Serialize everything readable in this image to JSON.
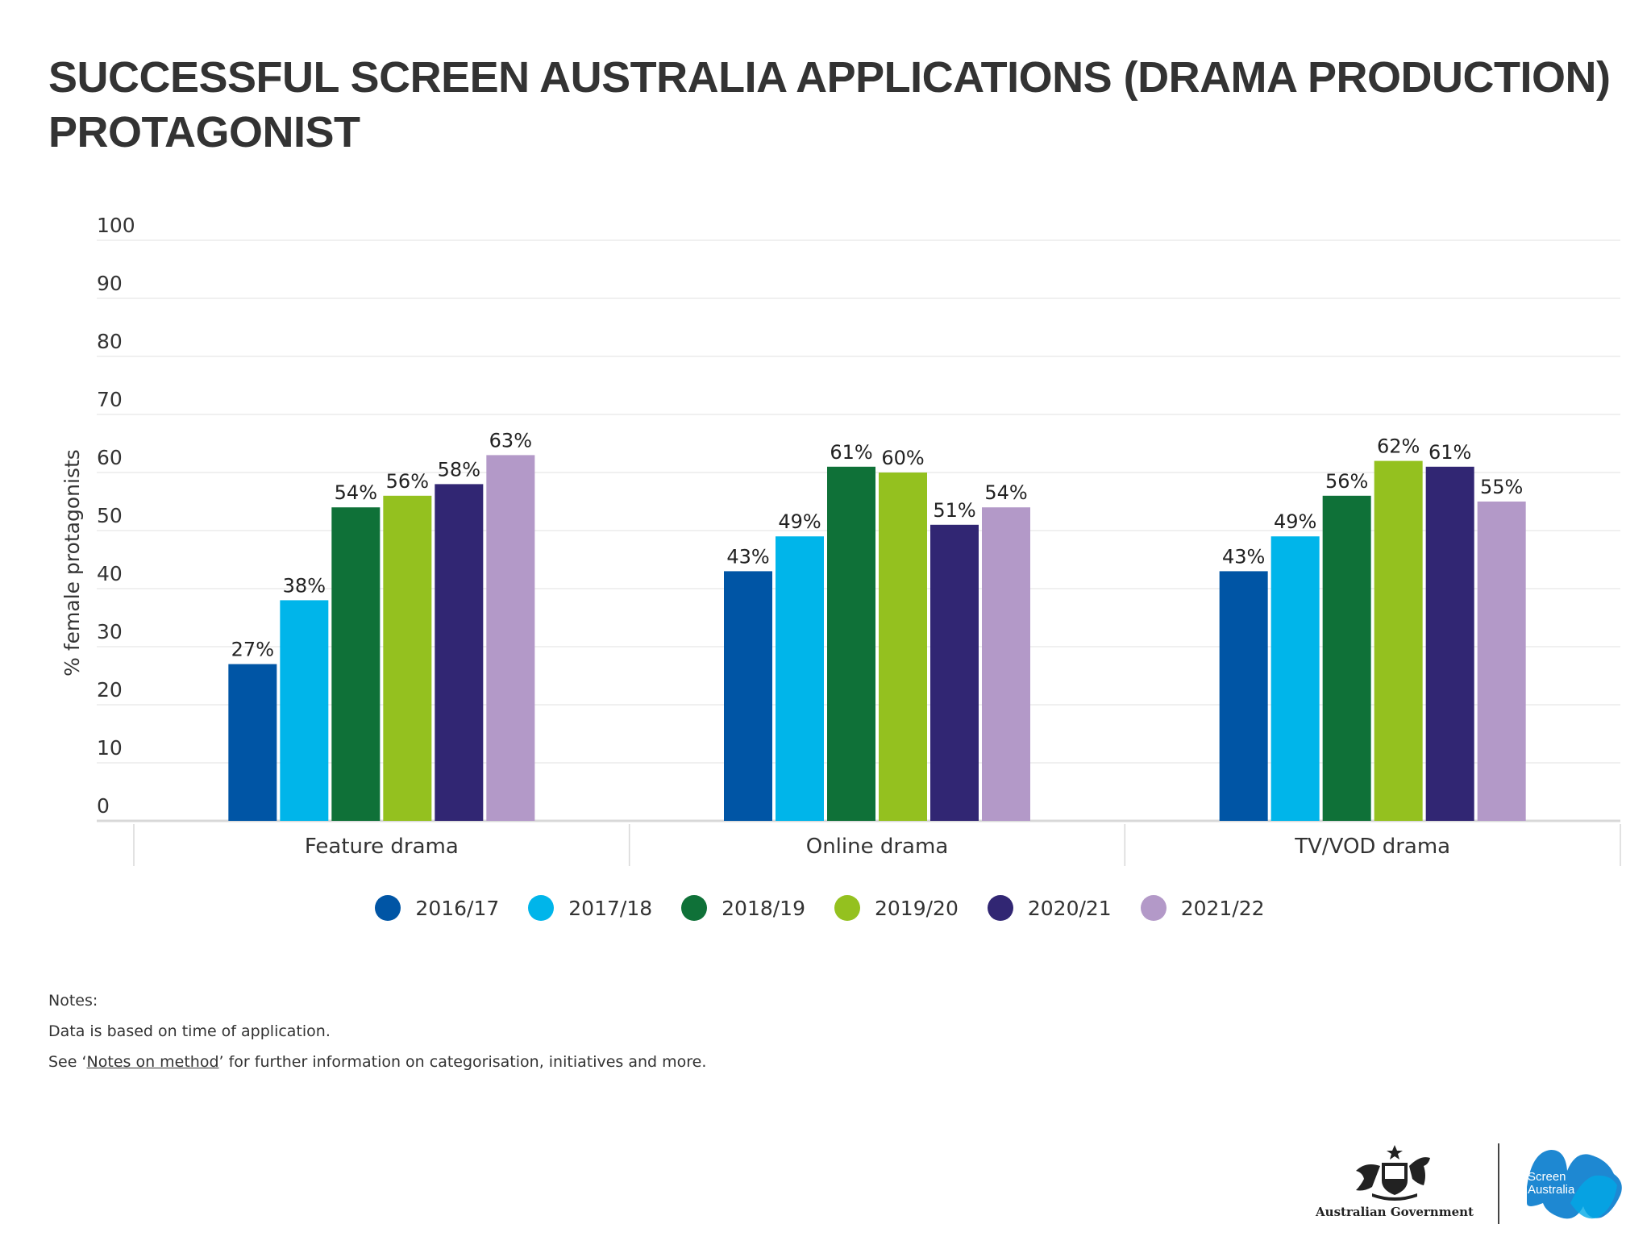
{
  "title": {
    "line1": "SUCCESSFUL SCREEN AUSTRALIA APPLICATIONS (DRAMA PRODUCTION)",
    "line2": "PROTAGONIST"
  },
  "chart_data": {
    "type": "bar",
    "categories": [
      "Feature drama",
      "Online drama",
      "TV/VOD drama"
    ],
    "series": [
      {
        "name": "2016/17",
        "values": [
          27,
          43,
          43
        ],
        "labels": [
          "27%",
          "43%",
          "43%"
        ],
        "color": "#0055a5"
      },
      {
        "name": "2017/18",
        "values": [
          38,
          49,
          49
        ],
        "labels": [
          "38%",
          "49%",
          "49%"
        ],
        "color": "#00b5ea"
      },
      {
        "name": "2018/19",
        "values": [
          54,
          61,
          56
        ],
        "labels": [
          "54%",
          "61%",
          "56%"
        ],
        "color": "#0f7138"
      },
      {
        "name": "2019/20",
        "values": [
          56,
          60,
          62
        ],
        "labels": [
          "56%",
          "60%",
          "62%"
        ],
        "color": "#94c11f"
      },
      {
        "name": "2020/21",
        "values": [
          58,
          51,
          61
        ],
        "labels": [
          "58%",
          "51%",
          "61%"
        ],
        "color": "#312673"
      },
      {
        "name": "2021/22",
        "values": [
          63,
          54,
          55
        ],
        "labels": [
          "63%",
          "54%",
          "55%"
        ],
        "color": "#b399c8"
      }
    ],
    "ylabel": "% female protagonists",
    "xlabel": "",
    "ylim": [
      0,
      100
    ],
    "yticks": [
      0,
      10,
      20,
      30,
      40,
      50,
      60,
      70,
      80,
      90,
      100
    ],
    "grid": true,
    "legend": "bottom-center"
  },
  "notes": {
    "heading": "Notes:",
    "line1": "Data is based on time of application.",
    "line2_prefix": "See ‘",
    "line2_link": "Notes on method",
    "line2_suffix": "’ for further information on categorisation, initiatives and more."
  },
  "footer": {
    "gov_label": "Australian Government",
    "sa_line1": "Screen",
    "sa_line2": "Australia"
  }
}
